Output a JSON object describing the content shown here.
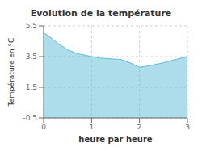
{
  "chart_data": {
    "type": "area",
    "title": "Evolution de la température",
    "xlabel": "heure par heure",
    "ylabel": "Température en °C",
    "x": [
      0,
      0.1,
      0.2,
      0.3,
      0.5,
      0.7,
      1.0,
      1.2,
      1.4,
      1.6,
      1.8,
      2.0,
      2.2,
      2.5,
      2.8,
      3.0
    ],
    "values": [
      5.05,
      4.85,
      4.6,
      4.35,
      3.95,
      3.7,
      3.5,
      3.4,
      3.35,
      3.32,
      3.1,
      2.8,
      2.9,
      3.1,
      3.35,
      3.5
    ],
    "color": "#5bbcd6",
    "xlim": [
      0,
      3
    ],
    "ylim": [
      -0.5,
      5.5
    ],
    "xticks": [
      0,
      1,
      2,
      3
    ],
    "yticks": [
      -0.5,
      1.5,
      3.5,
      5.5
    ],
    "grid": true
  }
}
